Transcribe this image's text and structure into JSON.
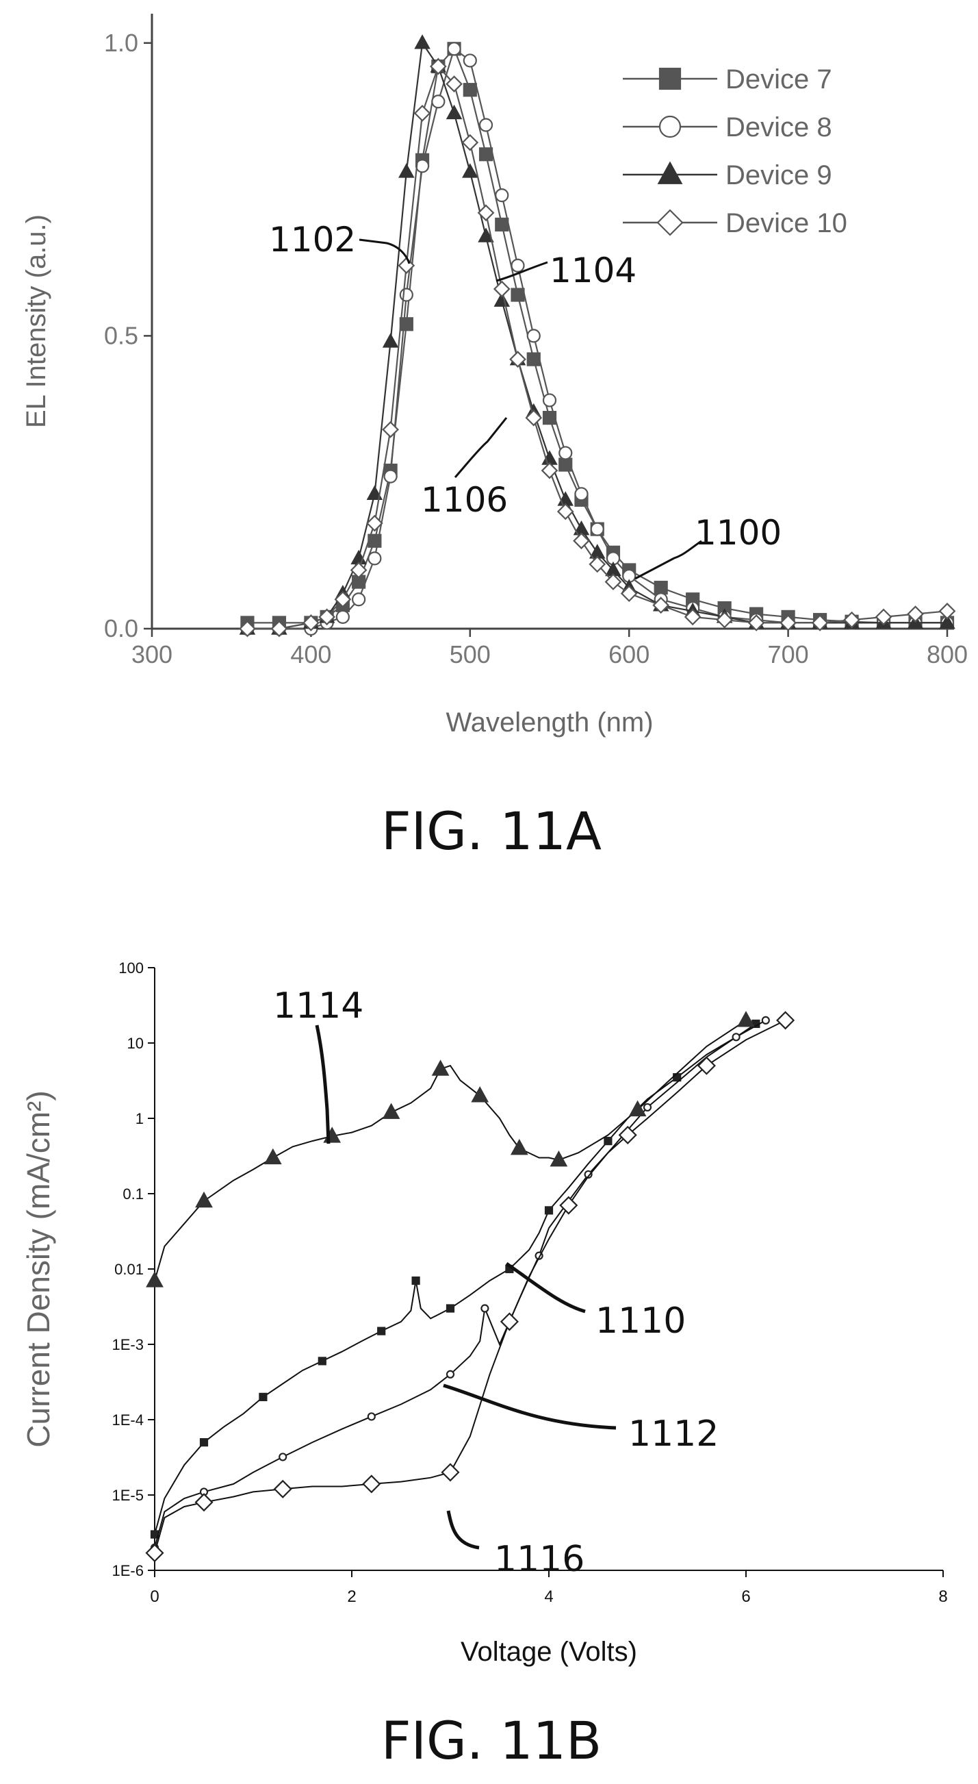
{
  "figures": [
    {
      "caption": "FIG. 11A"
    },
    {
      "caption": "FIG. 11B"
    }
  ],
  "chart_data": [
    {
      "type": "line",
      "title": "",
      "xlabel": "Wavelength (nm)",
      "ylabel": "EL Intensity (a.u.)",
      "xlim": [
        300,
        800
      ],
      "ylim": [
        0,
        1.05
      ],
      "x_ticks": [
        300,
        400,
        500,
        600,
        700,
        800
      ],
      "x_tick_labels": [
        "300",
        "400",
        "500",
        "600",
        "700",
        "800"
      ],
      "y_ticks": [
        0,
        0.5,
        1.0
      ],
      "y_tick_labels": [
        "0.0",
        "0.5",
        "1.0"
      ],
      "legend_position": "top-right",
      "annotations": [
        "1100",
        "1102",
        "1104",
        "1106"
      ],
      "series": [
        {
          "name": "Device 7",
          "marker": "filled-square",
          "color": "#555555",
          "x": [
            360,
            380,
            400,
            410,
            420,
            430,
            440,
            450,
            460,
            470,
            480,
            490,
            500,
            510,
            520,
            530,
            540,
            550,
            560,
            570,
            580,
            590,
            600,
            620,
            640,
            660,
            680,
            700,
            720,
            740,
            760,
            780,
            800
          ],
          "y": [
            0.01,
            0.01,
            0.01,
            0.02,
            0.04,
            0.08,
            0.15,
            0.27,
            0.52,
            0.8,
            0.96,
            0.99,
            0.92,
            0.81,
            0.69,
            0.57,
            0.46,
            0.36,
            0.28,
            0.22,
            0.17,
            0.13,
            0.1,
            0.07,
            0.05,
            0.035,
            0.025,
            0.02,
            0.015,
            0.012,
            0.01,
            0.01,
            0.01
          ]
        },
        {
          "name": "Device 8",
          "marker": "open-circle",
          "color": "#555555",
          "x": [
            360,
            380,
            400,
            410,
            420,
            430,
            440,
            450,
            460,
            470,
            480,
            490,
            500,
            510,
            520,
            530,
            540,
            550,
            560,
            570,
            580,
            590,
            600,
            620,
            640,
            660,
            680,
            700,
            720,
            740,
            760,
            780,
            800
          ],
          "y": [
            0.0,
            0.0,
            0.0,
            0.01,
            0.02,
            0.05,
            0.12,
            0.26,
            0.57,
            0.79,
            0.9,
            0.99,
            0.97,
            0.86,
            0.74,
            0.62,
            0.5,
            0.39,
            0.3,
            0.23,
            0.17,
            0.12,
            0.09,
            0.05,
            0.035,
            0.02,
            0.015,
            0.01,
            0.01,
            0.01,
            0.01,
            0.01,
            0.01
          ]
        },
        {
          "name": "Device 9",
          "marker": "filled-triangle",
          "color": "#333333",
          "x": [
            360,
            380,
            400,
            410,
            420,
            430,
            440,
            450,
            460,
            470,
            480,
            490,
            500,
            510,
            520,
            530,
            540,
            550,
            560,
            570,
            580,
            590,
            600,
            620,
            640,
            660,
            680,
            700,
            720,
            740,
            760,
            780,
            800
          ],
          "y": [
            0.0,
            0.0,
            0.01,
            0.02,
            0.06,
            0.12,
            0.23,
            0.49,
            0.78,
            1.0,
            0.96,
            0.88,
            0.78,
            0.67,
            0.56,
            0.46,
            0.37,
            0.29,
            0.22,
            0.17,
            0.13,
            0.1,
            0.07,
            0.04,
            0.03,
            0.02,
            0.01,
            0.01,
            0.01,
            0.01,
            0.01,
            0.01,
            0.01
          ]
        },
        {
          "name": "Device 10",
          "marker": "open-diamond",
          "color": "#555555",
          "x": [
            360,
            380,
            400,
            410,
            420,
            430,
            440,
            450,
            460,
            470,
            480,
            490,
            500,
            510,
            520,
            530,
            540,
            550,
            560,
            570,
            580,
            590,
            600,
            620,
            640,
            660,
            680,
            700,
            720,
            740,
            760,
            780,
            800
          ],
          "y": [
            0.0,
            0.0,
            0.01,
            0.02,
            0.05,
            0.1,
            0.18,
            0.34,
            0.62,
            0.88,
            0.96,
            0.93,
            0.83,
            0.71,
            0.58,
            0.46,
            0.36,
            0.27,
            0.2,
            0.15,
            0.11,
            0.08,
            0.06,
            0.04,
            0.02,
            0.015,
            0.01,
            0.01,
            0.01,
            0.015,
            0.02,
            0.025,
            0.03
          ]
        }
      ]
    },
    {
      "type": "line",
      "title": "",
      "xlabel": "Voltage (Volts)",
      "ylabel": "Current Density (mA/cm²)",
      "y_scale": "log",
      "xlim": [
        0,
        8
      ],
      "ylim": [
        1e-06,
        100
      ],
      "x_ticks": [
        0,
        2,
        4,
        6,
        8
      ],
      "x_tick_labels": [
        "0",
        "2",
        "4",
        "6",
        "8"
      ],
      "y_ticks": [
        1e-06,
        1e-05,
        0.0001,
        0.001,
        0.01,
        0.1,
        1,
        10,
        100
      ],
      "y_tick_labels": [
        "1E-6",
        "1E-5",
        "1E-4",
        "1E-3",
        "0.01",
        "0.1",
        "1",
        "10",
        "100"
      ],
      "annotations": [
        "1110",
        "1112",
        "1114",
        "1116"
      ],
      "series": [
        {
          "marker": "small-square",
          "color": "#222222",
          "x": [
            0,
            0.1,
            0.3,
            0.5,
            0.7,
            0.9,
            1.1,
            1.3,
            1.5,
            1.7,
            1.9,
            2.1,
            2.3,
            2.5,
            2.6,
            2.65,
            2.7,
            2.8,
            3.0,
            3.2,
            3.4,
            3.6,
            3.8,
            3.9,
            4.0,
            4.2,
            4.4,
            4.6,
            4.8,
            5.0,
            5.3,
            5.6,
            5.9,
            6.1
          ],
          "y": [
            3e-06,
            9e-06,
            2.5e-05,
            5e-05,
            8e-05,
            0.00012,
            0.0002,
            0.0003,
            0.00045,
            0.0006,
            0.0008,
            0.0011,
            0.0015,
            0.002,
            0.0028,
            0.007,
            0.003,
            0.0022,
            0.003,
            0.0045,
            0.007,
            0.01,
            0.018,
            0.03,
            0.06,
            0.12,
            0.25,
            0.5,
            1.0,
            1.8,
            3.5,
            7,
            12,
            18
          ]
        },
        {
          "marker": "small-circle",
          "color": "#222222",
          "x": [
            0,
            0.1,
            0.3,
            0.5,
            0.8,
            1.0,
            1.3,
            1.6,
            1.9,
            2.2,
            2.5,
            2.8,
            3.0,
            3.2,
            3.3,
            3.35,
            3.5,
            3.7,
            3.9,
            4.0,
            4.2,
            4.4,
            4.6,
            4.8,
            5.0,
            5.3,
            5.6,
            5.9,
            6.2
          ],
          "y": [
            2e-06,
            6e-06,
            9e-06,
            1.1e-05,
            1.4e-05,
            2e-05,
            3.2e-05,
            5e-05,
            7.5e-05,
            0.00011,
            0.00016,
            0.00025,
            0.0004,
            0.0007,
            0.0011,
            0.003,
            0.001,
            0.004,
            0.015,
            0.035,
            0.08,
            0.18,
            0.35,
            0.7,
            1.4,
            3,
            6.5,
            12,
            20
          ]
        },
        {
          "marker": "filled-triangle",
          "color": "#333333",
          "x": [
            0,
            0.1,
            0.3,
            0.5,
            0.8,
            1.0,
            1.2,
            1.4,
            1.6,
            1.8,
            2.0,
            2.2,
            2.4,
            2.6,
            2.8,
            2.9,
            3.0,
            3.1,
            3.3,
            3.5,
            3.6,
            3.7,
            3.9,
            4.0,
            4.1,
            4.3,
            4.6,
            4.9,
            5.2,
            5.6,
            6.0
          ],
          "y": [
            0.007,
            0.02,
            0.04,
            0.08,
            0.15,
            0.21,
            0.3,
            0.42,
            0.5,
            0.58,
            0.65,
            0.8,
            1.2,
            1.6,
            2.5,
            4.5,
            5.0,
            3.2,
            2.0,
            1.0,
            0.6,
            0.4,
            0.3,
            0.3,
            0.28,
            0.35,
            0.6,
            1.3,
            3,
            9,
            20
          ]
        },
        {
          "marker": "open-diamond",
          "color": "#222222",
          "x": [
            0,
            0.1,
            0.3,
            0.5,
            0.8,
            1.0,
            1.3,
            1.6,
            1.9,
            2.2,
            2.5,
            2.8,
            3.0,
            3.2,
            3.4,
            3.6,
            3.8,
            4.0,
            4.2,
            4.4,
            4.6,
            4.8,
            5.0,
            5.3,
            5.6,
            6.0,
            6.4
          ],
          "y": [
            1.7e-06,
            5e-06,
            7e-06,
            8e-06,
            9.5e-06,
            1.1e-05,
            1.2e-05,
            1.3e-05,
            1.3e-05,
            1.4e-05,
            1.5e-05,
            1.7e-05,
            2e-05,
            6e-05,
            0.0004,
            0.002,
            0.008,
            0.025,
            0.07,
            0.17,
            0.35,
            0.6,
            1.0,
            2.2,
            5,
            11,
            20
          ]
        }
      ]
    }
  ]
}
